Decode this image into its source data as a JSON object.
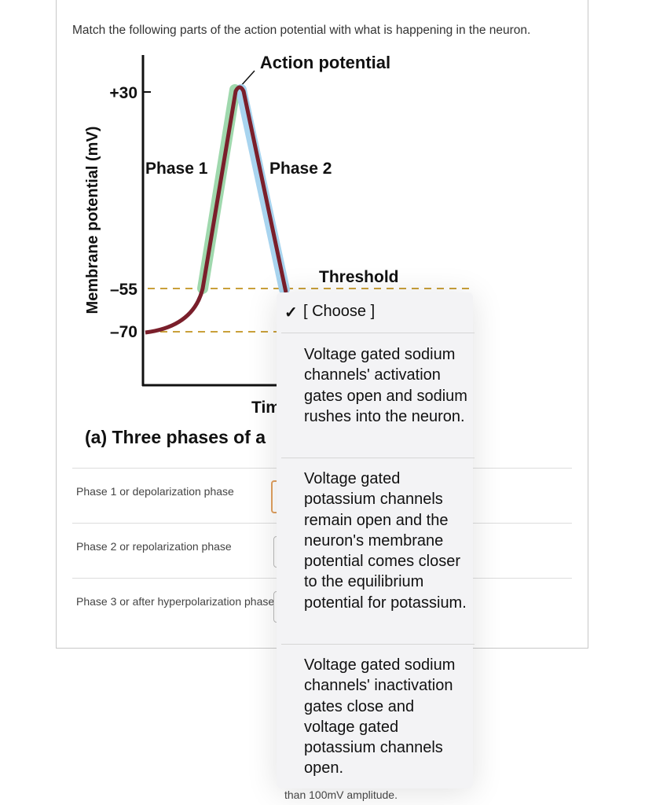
{
  "question": "Match the following parts of the action potential with what is happening in the neuron.",
  "figure": {
    "title": "Action potential",
    "y_axis_label": "Membrane potential (mV)",
    "y_labels": [
      "+30",
      "–55",
      "–70"
    ],
    "phase_1": "Phase 1",
    "phase_2": "Phase 2",
    "threshold": "Threshold",
    "x_axis_label": "Tim",
    "caption": "(a) Three phases of a"
  },
  "rows": [
    "Phase 1 or depolarization phase",
    "Phase 2 or repolarization phase",
    "Phase 3 or after hyperpolarization phase"
  ],
  "dropdown": {
    "selected": "[ Choose ]",
    "options": [
      "Voltage gated sodium channels' activation gates open and sodium rushes into the neuron.",
      "Voltage gated potassium channels remain open and the neuron's membrane potential comes closer to the equilibrium potential for potassium.",
      "Voltage gated sodium channels' inactivation gates close and voltage gated potassium channels open."
    ]
  },
  "footer_text": "than 100mV amplitude."
}
